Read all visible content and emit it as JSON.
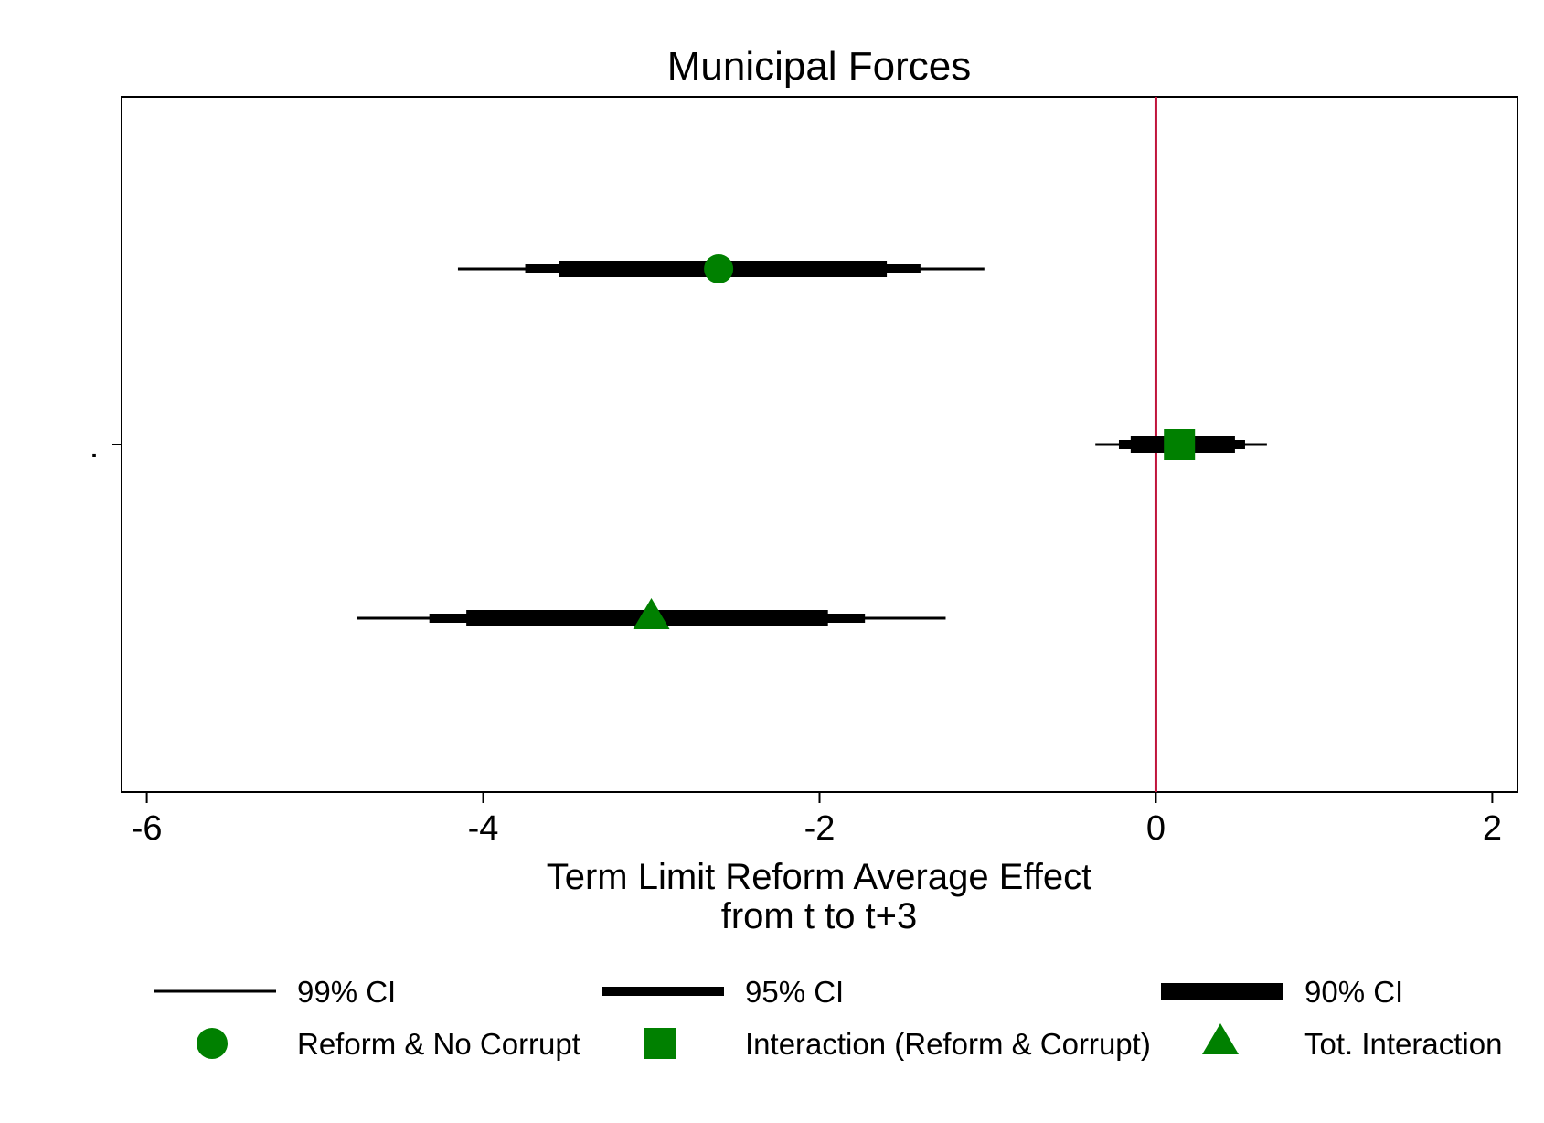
{
  "chart_data": {
    "type": "scatter",
    "chart_kind": "coefficient plot with confidence intervals",
    "title": "Municipal Forces",
    "xlabel_lines": [
      "Term Limit Reform Average Effect",
      "from t to t+3"
    ],
    "ylabel": "",
    "y_tick_labels": [
      "."
    ],
    "x_ticks": [
      -6,
      -4,
      -2,
      0,
      2
    ],
    "x_tick_labels": [
      "-6",
      "-4",
      "-2",
      "0",
      "2"
    ],
    "xlim": [
      -6.15,
      2.15
    ],
    "reference_line": {
      "x": 0,
      "color": "#c0143c"
    },
    "marker_color": "#008000",
    "interval_color": "#000000",
    "series": [
      {
        "name": "Reform & No Corrupt",
        "marker": "circle",
        "estimate": -2.6,
        "ci90": [
          -3.55,
          -1.6
        ],
        "ci95": [
          -3.75,
          -1.4
        ],
        "ci99": [
          -4.15,
          -1.02
        ]
      },
      {
        "name": "Interaction (Reform & Corrupt)",
        "marker": "square",
        "estimate": 0.14,
        "ci90": [
          -0.15,
          0.47
        ],
        "ci95": [
          -0.22,
          0.53
        ],
        "ci99": [
          -0.36,
          0.66
        ]
      },
      {
        "name": "Tot. Interaction",
        "marker": "triangle",
        "estimate": -3.0,
        "ci90": [
          -4.1,
          -1.95
        ],
        "ci95": [
          -4.32,
          -1.73
        ],
        "ci99": [
          -4.75,
          -1.25
        ]
      }
    ],
    "legend": {
      "placement": "bottom",
      "interval_items": [
        "99% CI",
        "95% CI",
        "90% CI"
      ],
      "marker_items": [
        "Reform & No Corrupt",
        "Interaction (Reform & Corrupt)",
        "Tot. Interaction"
      ]
    },
    "grid": false
  }
}
